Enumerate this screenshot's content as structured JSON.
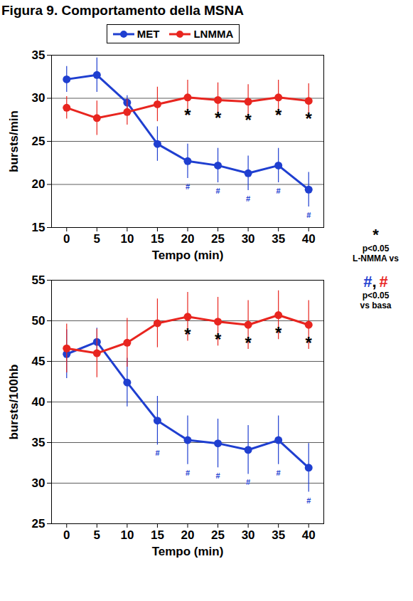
{
  "title": "Figura 9. Comportamento della MSNA",
  "chart_data": [
    {
      "type": "line",
      "xlabel": "Tempo (min)",
      "ylabel": "bursts/min",
      "x": [
        0,
        5,
        10,
        15,
        20,
        25,
        30,
        35,
        40
      ],
      "xlim": [
        -2.5,
        42.5
      ],
      "xticks": [
        0,
        5,
        10,
        15,
        20,
        25,
        30,
        35,
        40
      ],
      "ylim": [
        15,
        35
      ],
      "yticks": [
        15,
        20,
        25,
        30,
        35
      ],
      "grid": true,
      "legend": "top",
      "series": [
        {
          "name": "MET",
          "color": "#1f3fd0",
          "marker": "circle",
          "values": [
            32.2,
            32.7,
            29.5,
            24.7,
            22.7,
            22.2,
            21.3,
            22.2,
            19.4
          ],
          "errors": [
            1.5,
            2.0,
            0.8,
            2.0,
            2.0,
            2.0,
            2.0,
            2.0,
            2.0
          ]
        },
        {
          "name": "LNMMA",
          "color": "#e8251f",
          "marker": "circle",
          "values": [
            28.9,
            27.7,
            28.4,
            29.3,
            30.1,
            29.8,
            29.6,
            30.1,
            29.7
          ],
          "errors": [
            1.3,
            2.0,
            1.5,
            2.0,
            2.0,
            2.0,
            2.0,
            2.0,
            2.0
          ]
        }
      ],
      "significance": [
        {
          "label": "*",
          "color": "#000000",
          "series": "LNMMA",
          "x": [
            20,
            25,
            30,
            35,
            40
          ]
        },
        {
          "label": "#",
          "color": "#1f3fd0",
          "series": "MET",
          "x": [
            20,
            25,
            30,
            35,
            40
          ]
        }
      ]
    },
    {
      "type": "line",
      "xlabel": "Tempo (min)",
      "ylabel": "bursts/100hb",
      "x": [
        0,
        5,
        10,
        15,
        20,
        25,
        30,
        35,
        40
      ],
      "xlim": [
        -2.5,
        42.5
      ],
      "xticks": [
        0,
        5,
        10,
        15,
        20,
        25,
        30,
        35,
        40
      ],
      "ylim": [
        25,
        55
      ],
      "yticks": [
        25,
        30,
        35,
        40,
        45,
        50,
        55
      ],
      "grid": true,
      "series": [
        {
          "name": "MET",
          "color": "#1f3fd0",
          "marker": "circle",
          "values": [
            45.9,
            47.4,
            42.4,
            37.7,
            35.3,
            34.9,
            34.1,
            35.3,
            31.9
          ],
          "errors": [
            3.0,
            1.7,
            3.0,
            3.0,
            3.0,
            3.0,
            3.0,
            3.0,
            3.0
          ]
        },
        {
          "name": "LNMMA",
          "color": "#e8251f",
          "marker": "circle",
          "values": [
            46.6,
            46.0,
            47.3,
            49.7,
            50.5,
            49.9,
            49.5,
            50.7,
            49.5
          ],
          "errors": [
            3.0,
            3.0,
            3.0,
            3.0,
            3.0,
            3.0,
            3.0,
            3.0,
            3.0
          ]
        }
      ],
      "significance": [
        {
          "label": "*",
          "color": "#000000",
          "series": "LNMMA",
          "x": [
            20,
            25,
            30,
            35,
            40
          ]
        },
        {
          "label": "#",
          "color": "#1f3fd0",
          "series": "MET",
          "x": [
            15,
            20,
            25,
            30,
            35,
            40
          ]
        }
      ]
    }
  ],
  "key": [
    {
      "symbols": [
        {
          "text": "*",
          "color": "#000000"
        }
      ],
      "lines": [
        "p<0.05",
        "L-NMMA vs"
      ]
    },
    {
      "symbols": [
        {
          "text": "#",
          "color": "#1f3fd0"
        },
        {
          "text": ",",
          "color": "#000000"
        },
        {
          "text": "#",
          "color": "#e8251f"
        }
      ],
      "lines": [
        "p<0.05",
        "vs basa"
      ]
    }
  ]
}
